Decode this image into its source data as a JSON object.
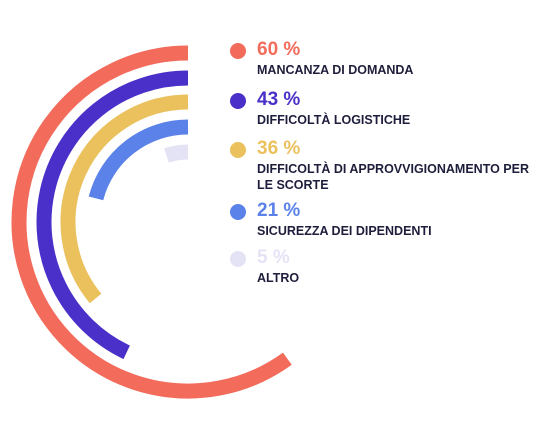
{
  "chart_data": {
    "type": "radial-bar",
    "series": [
      {
        "name": "MANCANZA DI DOMANDA",
        "value": 60,
        "value_label": "60 %",
        "color": "#f26b5b"
      },
      {
        "name": "DIFFICOLTÀ LOGISTICHE",
        "value": 43,
        "value_label": "43 %",
        "color": "#4a2fc9"
      },
      {
        "name": "DIFFICOLTÀ DI APPROVVIGIONAMENTO PER LE SCORTE",
        "value": 36,
        "value_label": "36 %",
        "color": "#ebc15e"
      },
      {
        "name": "SICUREZZA DEI DIPENDENTI",
        "value": 21,
        "value_label": "21 %",
        "color": "#5a82e8"
      },
      {
        "name": "ALTRO",
        "value": 5,
        "value_label": "5 %",
        "color": "#e4e3f6"
      }
    ],
    "max": 100,
    "legend_position": "right"
  }
}
